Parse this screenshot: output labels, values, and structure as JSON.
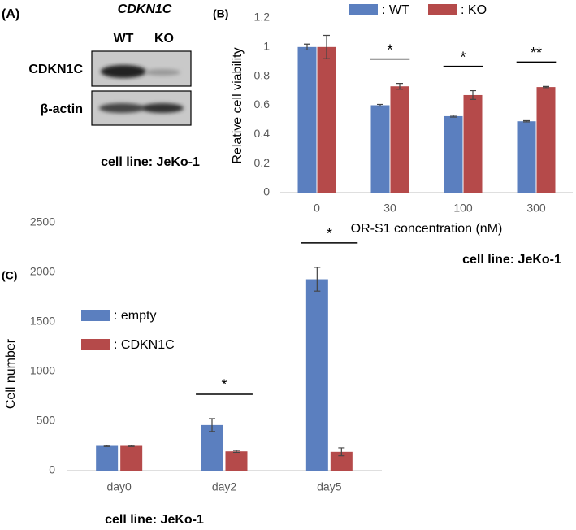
{
  "blot": {
    "panel_label": "(A)",
    "gene": "CDKN1C",
    "lanes": [
      "WT",
      "KO"
    ],
    "rows": [
      "CDKN1C",
      "β-actin"
    ],
    "note": "cell line: JeKo-1"
  },
  "chart_data": [
    {
      "type": "bar",
      "panel_label": "(B)",
      "y_label": "Relative cell viability",
      "x_label": "OR-S1 concentration (nM)",
      "note": "cell line: JeKo-1",
      "categories": [
        "0",
        "30",
        "100",
        "300"
      ],
      "series": [
        {
          "name": ": WT",
          "color": "#5b7fbf",
          "values": [
            1.0,
            0.6,
            0.525,
            0.49
          ],
          "errors": [
            0.02,
            0.006,
            0.006,
            0.004
          ]
        },
        {
          "name": ": KO",
          "color": "#b54a4a",
          "values": [
            1.0,
            0.73,
            0.67,
            0.725
          ],
          "errors": [
            0.08,
            0.02,
            0.03,
            0.004
          ]
        }
      ],
      "significance": [
        null,
        "*",
        "*",
        "**"
      ],
      "ylim": [
        0,
        1.2
      ],
      "yticks": [
        0,
        0.2,
        0.4,
        0.6,
        0.8,
        1,
        1.2
      ],
      "grid": false,
      "legend": "top"
    },
    {
      "type": "bar",
      "panel_label": "(C)",
      "y_label": "Cell number",
      "note": "cell line: JeKo-1",
      "categories": [
        "day0",
        "day2",
        "day5"
      ],
      "series": [
        {
          "name": ": empty",
          "color": "#5b7fbf",
          "values": [
            250,
            460,
            1930
          ],
          "errors": [
            6,
            65,
            120
          ]
        },
        {
          "name": ": CDKN1C",
          "color": "#b54a4a",
          "values": [
            250,
            195,
            190
          ],
          "errors": [
            6,
            10,
            40
          ]
        }
      ],
      "significance": [
        null,
        "*",
        "*"
      ],
      "ylim": [
        0,
        2500
      ],
      "yticks": [
        0,
        500,
        1000,
        1500,
        2000,
        2500
      ],
      "grid": false,
      "legend": "upper left"
    }
  ]
}
